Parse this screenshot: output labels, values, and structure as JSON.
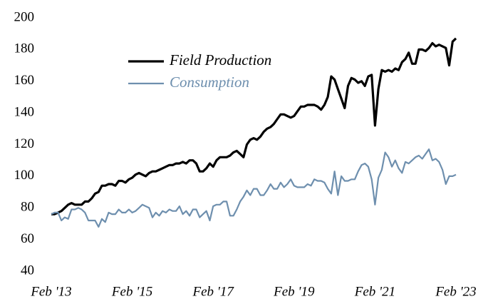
{
  "chart_data": {
    "type": "line",
    "x": [
      "2013-02",
      "2013-03",
      "2013-04",
      "2013-05",
      "2013-06",
      "2013-07",
      "2013-08",
      "2013-09",
      "2013-10",
      "2013-11",
      "2013-12",
      "2014-01",
      "2014-02",
      "2014-03",
      "2014-04",
      "2014-05",
      "2014-06",
      "2014-07",
      "2014-08",
      "2014-09",
      "2014-10",
      "2014-11",
      "2014-12",
      "2015-01",
      "2015-02",
      "2015-03",
      "2015-04",
      "2015-05",
      "2015-06",
      "2015-07",
      "2015-08",
      "2015-09",
      "2015-10",
      "2015-11",
      "2015-12",
      "2016-01",
      "2016-02",
      "2016-03",
      "2016-04",
      "2016-05",
      "2016-06",
      "2016-07",
      "2016-08",
      "2016-09",
      "2016-10",
      "2016-11",
      "2016-12",
      "2017-01",
      "2017-02",
      "2017-03",
      "2017-04",
      "2017-05",
      "2017-06",
      "2017-07",
      "2017-08",
      "2017-09",
      "2017-10",
      "2017-11",
      "2017-12",
      "2018-01",
      "2018-02",
      "2018-03",
      "2018-04",
      "2018-05",
      "2018-06",
      "2018-07",
      "2018-08",
      "2018-09",
      "2018-10",
      "2018-11",
      "2018-12",
      "2019-01",
      "2019-02",
      "2019-03",
      "2019-04",
      "2019-05",
      "2019-06",
      "2019-07",
      "2019-08",
      "2019-09",
      "2019-10",
      "2019-11",
      "2019-12",
      "2020-01",
      "2020-02",
      "2020-03",
      "2020-04",
      "2020-05",
      "2020-06",
      "2020-07",
      "2020-08",
      "2020-09",
      "2020-10",
      "2020-11",
      "2020-12",
      "2021-01",
      "2021-02",
      "2021-03",
      "2021-04",
      "2021-05",
      "2021-06",
      "2021-07",
      "2021-08",
      "2021-09",
      "2021-10",
      "2021-11",
      "2021-12",
      "2022-01",
      "2022-02",
      "2022-03",
      "2022-04",
      "2022-05",
      "2022-06",
      "2022-07",
      "2022-08",
      "2022-09",
      "2022-10",
      "2022-11",
      "2022-12",
      "2023-01",
      "2023-02"
    ],
    "series": [
      {
        "name": "Field Production",
        "color": "#000000",
        "values": [
          76,
          76,
          77,
          78,
          80,
          82,
          83,
          82,
          82,
          82,
          84,
          84,
          86,
          89,
          90,
          94,
          94,
          95,
          95,
          94,
          97,
          97,
          96,
          98,
          99,
          101,
          102,
          101,
          100,
          102,
          103,
          103,
          104,
          105,
          106,
          107,
          107,
          108,
          108,
          109,
          108,
          110,
          110,
          108,
          103,
          103,
          105,
          108,
          106,
          110,
          112,
          112,
          112,
          113,
          115,
          116,
          114,
          112,
          120,
          123,
          124,
          123,
          125,
          128,
          130,
          131,
          133,
          136,
          139,
          139,
          138,
          137,
          138,
          141,
          144,
          144,
          145,
          145,
          145,
          144,
          142,
          145,
          150,
          163,
          161,
          155,
          149,
          143,
          157,
          162,
          161,
          159,
          160,
          157,
          163,
          164,
          132,
          155,
          167,
          166,
          167,
          166,
          168,
          167,
          172,
          174,
          178,
          171,
          171,
          180,
          180,
          179,
          181,
          184,
          182,
          183,
          182,
          181,
          170,
          185,
          187
        ]
      },
      {
        "name": "Consumption",
        "color": "#6e8fae",
        "values": [
          76,
          77,
          77,
          72,
          74,
          73,
          79,
          79,
          80,
          79,
          77,
          72,
          72,
          72,
          68,
          73,
          71,
          77,
          76,
          76,
          79,
          77,
          77,
          79,
          77,
          78,
          80,
          82,
          81,
          80,
          74,
          77,
          75,
          78,
          77,
          79,
          78,
          78,
          81,
          76,
          78,
          75,
          79,
          79,
          74,
          76,
          78,
          72,
          81,
          82,
          82,
          84,
          84,
          75,
          75,
          79,
          84,
          87,
          91,
          88,
          92,
          92,
          88,
          88,
          91,
          95,
          92,
          92,
          96,
          93,
          95,
          98,
          94,
          93,
          93,
          93,
          95,
          94,
          98,
          97,
          97,
          96,
          92,
          89,
          103,
          88,
          100,
          97,
          97,
          98,
          98,
          103,
          107,
          108,
          106,
          98,
          82,
          99,
          104,
          115,
          112,
          106,
          110,
          105,
          102,
          109,
          108,
          110,
          112,
          113,
          111,
          114,
          117,
          110,
          111,
          109,
          104,
          95,
          100,
          100,
          101
        ]
      }
    ],
    "xlim": [
      "2013-02",
      "2023-02"
    ],
    "xticks": [
      {
        "value": "2013-02",
        "label": "Feb '13"
      },
      {
        "value": "2015-02",
        "label": "Feb '15"
      },
      {
        "value": "2017-02",
        "label": "Feb '17"
      },
      {
        "value": "2019-02",
        "label": "Feb '19"
      },
      {
        "value": "2021-02",
        "label": "Feb '21"
      },
      {
        "value": "2023-02",
        "label": "Feb '23"
      }
    ],
    "ylim": [
      40,
      200
    ],
    "yticks": [
      40,
      60,
      80,
      100,
      120,
      140,
      160,
      180,
      200
    ],
    "legend": "upper left"
  }
}
